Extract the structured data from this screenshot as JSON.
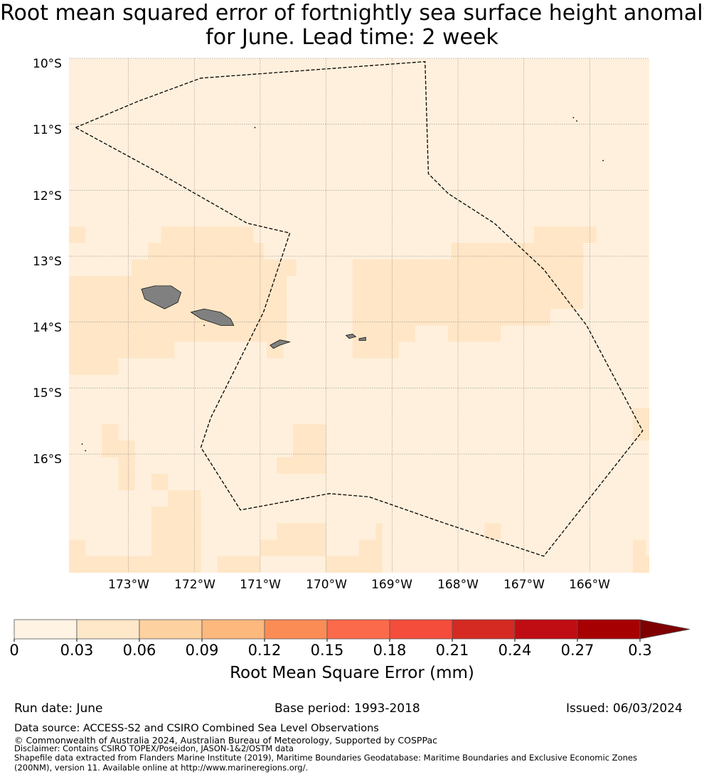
{
  "title": {
    "line1": "Root mean squared error of fortnightly sea surface height anomaly",
    "line2": "for June. Lead time: 2 week"
  },
  "map": {
    "lat_labels": [
      "10°S",
      "11°S",
      "12°S",
      "13°S",
      "14°S",
      "15°S",
      "16°S"
    ],
    "lon_labels": [
      "173°W",
      "172°W",
      "171°W",
      "170°W",
      "169°W",
      "168°W",
      "167°W",
      "166°W"
    ],
    "colors": {
      "background_cell": "#fff0dd",
      "raised_cell": "#ffe6c6",
      "land": "#808080",
      "boundary": "#000000"
    },
    "lat_range": [
      -10,
      -17.8
    ],
    "lon_range": [
      -173.9,
      -165.1
    ],
    "eez_boundary": [
      [
        -173.8,
        -11.05
      ],
      [
        -172.85,
        -10.65
      ],
      [
        -171.9,
        -10.3
      ],
      [
        -168.5,
        -10.05
      ],
      [
        -168.45,
        -11.75
      ],
      [
        -168.15,
        -12.05
      ],
      [
        -167.45,
        -12.5
      ],
      [
        -166.7,
        -13.2
      ],
      [
        -166.05,
        -14.05
      ],
      [
        -165.2,
        -15.65
      ],
      [
        -166.7,
        -17.55
      ],
      [
        -168.2,
        -17.05
      ],
      [
        -169.35,
        -16.65
      ],
      [
        -169.95,
        -16.6
      ],
      [
        -171.3,
        -16.85
      ],
      [
        -171.9,
        -15.9
      ],
      [
        -171.75,
        -15.45
      ],
      [
        -170.95,
        -13.85
      ],
      [
        -170.55,
        -12.65
      ],
      [
        -171.2,
        -12.5
      ],
      [
        -172.6,
        -11.7
      ],
      [
        -173.8,
        -11.05
      ]
    ],
    "raised_cells": [
      [
        -173.9,
        -12.55,
        -173.65,
        -12.8
      ],
      [
        -172.5,
        -12.55,
        -171.1,
        -12.8
      ],
      [
        -172.7,
        -12.8,
        -170.95,
        -13.05
      ],
      [
        -172.95,
        -13.05,
        -170.45,
        -13.3
      ],
      [
        -173.9,
        -13.3,
        -170.6,
        -14.3
      ],
      [
        -173.9,
        -14.3,
        -172.3,
        -14.55
      ],
      [
        -173.9,
        -14.55,
        -173.15,
        -14.8
      ],
      [
        -170.9,
        -14.3,
        -170.65,
        -14.55
      ],
      [
        -170.5,
        -15.55,
        -170.0,
        -16.05
      ],
      [
        -170.75,
        -16.05,
        -170.0,
        -16.3
      ],
      [
        -173.4,
        -15.55,
        -173.15,
        -15.8
      ],
      [
        -173.4,
        -15.8,
        -172.9,
        -16.05
      ],
      [
        -173.15,
        -16.05,
        -172.9,
        -16.55
      ],
      [
        -172.65,
        -16.3,
        -172.4,
        -16.55
      ],
      [
        -172.4,
        -16.55,
        -171.9,
        -16.8
      ],
      [
        -172.65,
        -16.8,
        -171.9,
        -17.55
      ],
      [
        -173.9,
        -17.3,
        -173.65,
        -17.55
      ],
      [
        -173.9,
        -17.55,
        -171.9,
        -17.8
      ],
      [
        -171.65,
        -17.55,
        -171.0,
        -17.8
      ],
      [
        -171.0,
        -17.3,
        -170.0,
        -17.55
      ],
      [
        -170.75,
        -17.05,
        -170.0,
        -17.3
      ],
      [
        -170.25,
        -17.05,
        -170.0,
        -17.3
      ],
      [
        -170.0,
        -17.55,
        -169.15,
        -17.8
      ],
      [
        -169.5,
        -17.3,
        -169.15,
        -17.55
      ],
      [
        -169.25,
        -17.05,
        -169.15,
        -17.3
      ],
      [
        -167.6,
        -17.05,
        -167.35,
        -17.3
      ],
      [
        -165.35,
        -17.3,
        -165.15,
        -17.8
      ],
      [
        -165.35,
        -17.55,
        -165.1,
        -17.8
      ],
      [
        -166.85,
        -12.55,
        -165.9,
        -12.8
      ],
      [
        -168.1,
        -12.8,
        -166.1,
        -13.05
      ],
      [
        -169.6,
        -13.05,
        -166.1,
        -13.8
      ],
      [
        -169.6,
        -13.8,
        -166.6,
        -14.05
      ],
      [
        -169.6,
        -14.05,
        -168.65,
        -14.3
      ],
      [
        -168.15,
        -14.05,
        -167.35,
        -14.3
      ],
      [
        -169.6,
        -14.3,
        -168.9,
        -14.55
      ],
      [
        -165.35,
        -15.3,
        -165.1,
        -15.8
      ]
    ],
    "land_polygons": [
      [
        [
          -172.8,
          -13.5
        ],
        [
          -172.6,
          -13.45
        ],
        [
          -172.35,
          -13.45
        ],
        [
          -172.2,
          -13.55
        ],
        [
          -172.25,
          -13.7
        ],
        [
          -172.45,
          -13.8
        ],
        [
          -172.55,
          -13.75
        ],
        [
          -172.75,
          -13.65
        ]
      ],
      [
        [
          -172.05,
          -13.85
        ],
        [
          -171.85,
          -13.8
        ],
        [
          -171.6,
          -13.85
        ],
        [
          -171.45,
          -13.95
        ],
        [
          -171.4,
          -14.05
        ],
        [
          -171.6,
          -14.05
        ],
        [
          -171.9,
          -13.95
        ]
      ],
      [
        [
          -170.85,
          -14.35
        ],
        [
          -170.7,
          -14.27
        ],
        [
          -170.55,
          -14.3
        ],
        [
          -170.7,
          -14.35
        ],
        [
          -170.8,
          -14.4
        ]
      ],
      [
        [
          -169.7,
          -14.2
        ],
        [
          -169.6,
          -14.18
        ],
        [
          -169.55,
          -14.22
        ],
        [
          -169.65,
          -14.25
        ]
      ],
      [
        [
          -169.5,
          -14.25
        ],
        [
          -169.4,
          -14.23
        ],
        [
          -169.4,
          -14.28
        ],
        [
          -169.5,
          -14.28
        ]
      ]
    ],
    "islets": [
      [
        -171.08,
        -11.05
      ],
      [
        -166.2,
        -10.95
      ],
      [
        -165.8,
        -11.55
      ],
      [
        -173.65,
        -15.95
      ],
      [
        -173.7,
        -15.85
      ],
      [
        -166.25,
        -10.9
      ],
      [
        -171.85,
        -14.05
      ]
    ]
  },
  "colorbar": {
    "ticks": [
      "0",
      "0.03",
      "0.06",
      "0.09",
      "0.12",
      "0.15",
      "0.18",
      "0.21",
      "0.24",
      "0.27",
      "0.3"
    ],
    "colors": [
      "#fff3e3",
      "#ffe7c9",
      "#fdd1a0",
      "#fdb87e",
      "#fc8c56",
      "#fb6a4a",
      "#f44d3c",
      "#d42a22",
      "#c00d13",
      "#a70003"
    ],
    "extend_color": "#7f0001",
    "label": "Root Mean Square Error (mm)"
  },
  "footer": {
    "run_date": "Run date: June",
    "base_period": "Base period: 1993-2018",
    "issued": "Issued: 06/03/2024",
    "data_source": "Data source: ACCESS-S2 and CSIRO Combined Sea Level Observations",
    "copyright": "© Commonwealth of Australia 2024, Australian Bureau of Meteorology, Supported by COSPPac",
    "disclaimer": "Disclaimer: Contains CSIRO TOPEX/Poseidon, JASON-1&2/OSTM data",
    "shapefile": "Shapefile data extracted from Flanders Marine Institute (2019), Maritime Boundaries Geodatabase: Maritime Boundaries and Exclusive Economic Zones",
    "shapefile2": "(200NM), version 11. Available online at http://www.marineregions.org/."
  }
}
